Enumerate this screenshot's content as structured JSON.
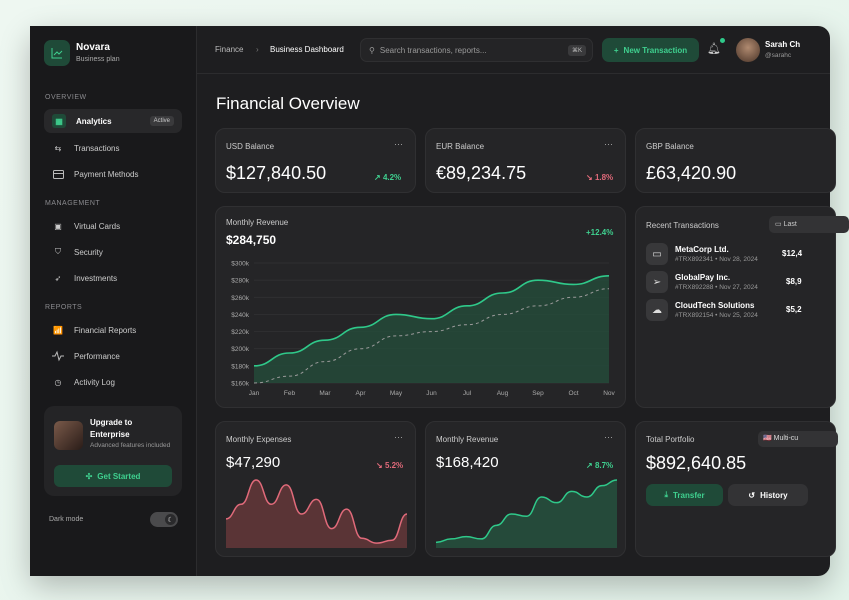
{
  "brand": {
    "name": "Novara",
    "plan": "Business plan"
  },
  "sidebar": {
    "sections": [
      "OVERVIEW",
      "MANAGEMENT",
      "REPORTS"
    ],
    "items": [
      {
        "label": "Analytics",
        "icon": "analytics-icon",
        "badge": "Active"
      },
      {
        "label": "Transactions",
        "icon": "arrows-icon"
      },
      {
        "label": "Payment Methods",
        "icon": "card-icon"
      },
      {
        "label": "Virtual Cards",
        "icon": "id-card-icon"
      },
      {
        "label": "Security",
        "icon": "shield-icon"
      },
      {
        "label": "Investments",
        "icon": "rocket-icon"
      },
      {
        "label": "Financial Reports",
        "icon": "bar-chart-icon"
      },
      {
        "label": "Performance",
        "icon": "pulse-icon"
      },
      {
        "label": "Activity Log",
        "icon": "clock-icon"
      }
    ],
    "upgrade": {
      "title": "Upgrade to Enterprise",
      "subtitle": "Advanced features included",
      "button": "Get Started"
    },
    "dark_mode": {
      "label": "Dark mode",
      "on": true
    }
  },
  "header": {
    "breadcrumb": [
      "Finance",
      "Business Dashboard"
    ],
    "search_placeholder": "Search transactions, reports...",
    "shortcut": "⌘K",
    "new_button": "New Transaction",
    "user": {
      "name": "Sarah Ch",
      "handle": "@sarahc"
    }
  },
  "page_title": "Financial Overview",
  "balances": [
    {
      "label": "USD Balance",
      "value": "$127,840.50",
      "change": "4.2%",
      "dir": "up"
    },
    {
      "label": "EUR Balance",
      "value": "€89,234.75",
      "change": "1.8%",
      "dir": "down"
    },
    {
      "label": "GBP Balance",
      "value": "£63,420.90"
    }
  ],
  "revenue": {
    "label": "Monthly Revenue",
    "value": "$284,750",
    "change": "+12.4%"
  },
  "chart_data": [
    {
      "type": "area",
      "categories": [
        "Jan",
        "Feb",
        "Mar",
        "Apr",
        "May",
        "Jun",
        "Jul",
        "Aug",
        "Sep",
        "Oct",
        "Nov"
      ],
      "series": [
        {
          "values": [
            180,
            195,
            210,
            225,
            240,
            235,
            250,
            265,
            280,
            275,
            285
          ],
          "color": "#2fc98a"
        },
        {
          "values": [
            160,
            168,
            185,
            200,
            215,
            220,
            228,
            240,
            250,
            260,
            270
          ],
          "style": "dashed",
          "color": "#9a9a9a"
        }
      ],
      "yticks": [
        "$160k",
        "$180k",
        "$200k",
        "$220k",
        "$240k",
        "$260k",
        "$280k",
        "$300k"
      ],
      "ylim": [
        160,
        300
      ],
      "grid": true
    },
    {
      "type": "area",
      "values": [
        30,
        45,
        70,
        45,
        65,
        35,
        50,
        20,
        40,
        10,
        5,
        8,
        35
      ],
      "color": "#e06a7a"
    },
    {
      "type": "area",
      "values": [
        5,
        8,
        10,
        8,
        20,
        30,
        28,
        45,
        40,
        50,
        45,
        55,
        60
      ],
      "color": "#2fc98a"
    }
  ],
  "expenses": {
    "label": "Monthly Expenses",
    "value": "$47,290",
    "change": "5.2%"
  },
  "revenue2": {
    "label": "Monthly Revenue",
    "value": "$168,420",
    "change": "8.7%"
  },
  "recent": {
    "title": "Recent Transactions",
    "filter": "Last",
    "items": [
      {
        "name": "MetaCorp Ltd.",
        "meta": "#TRX892341 • Nov 28, 2024",
        "amount": "$12,4",
        "icon": "wallet-icon"
      },
      {
        "name": "GlobalPay Inc.",
        "meta": "#TRX892288 • Nov 27, 2024",
        "amount": "$8,9",
        "icon": "send-icon"
      },
      {
        "name": "CloudTech Solutions",
        "meta": "#TRX892154 • Nov 25, 2024",
        "amount": "$5,2",
        "icon": "cloud-icon"
      }
    ]
  },
  "portfolio": {
    "label": "Total Portfolio",
    "value": "$892,640.85",
    "currency": "Multi-cu",
    "transfer": "Transfer",
    "history": "History"
  },
  "more": "···"
}
